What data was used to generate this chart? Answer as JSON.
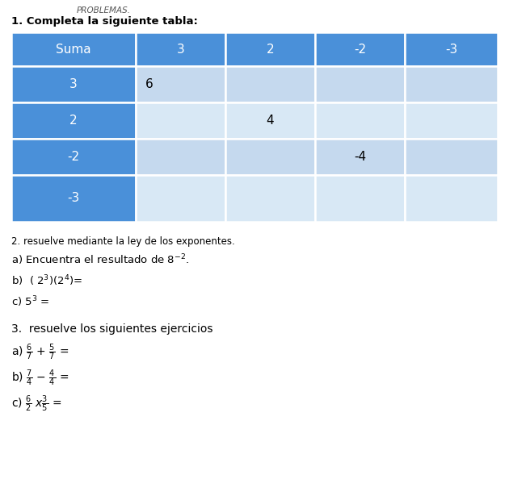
{
  "title_text": "PROBLEMAS.",
  "section1_title": "1. Completa la siguiente tabla:",
  "table_header": [
    "Suma",
    "3",
    "2",
    "-2",
    "-3"
  ],
  "table_rows": [
    [
      "3",
      "6",
      "",
      "",
      ""
    ],
    [
      "2",
      "",
      "4",
      "",
      ""
    ],
    [
      "-2",
      "",
      "",
      "-4",
      ""
    ],
    [
      "-3",
      "",
      "",
      "",
      ""
    ]
  ],
  "header_color": "#4a90d9",
  "row_label_color": "#4a90d9",
  "row_data_color_light": "#c5d9ee",
  "row_data_color_lighter": "#d8e8f5",
  "section2_title": "2. resuelve mediante la ley de los exponentes.",
  "section2_items": [
    "a) Encuentra el resultado de $8^{-2}$.",
    "b)  ( $2^3$)($2^4$)=",
    "c) $5^3$ ="
  ],
  "section3_title": "3.  resuelve los siguientes ejercicios",
  "section3_items": [
    "a) $\\frac{6}{7}$ + $\\frac{5}{7}$ =",
    "b) $\\frac{7}{4}$ $-$ $\\frac{4}{4}$ =",
    "c) $\\frac{6}{2}$ $x\\frac{3}{5}$ ="
  ],
  "bg_color": "#ffffff",
  "text_color": "#000000"
}
